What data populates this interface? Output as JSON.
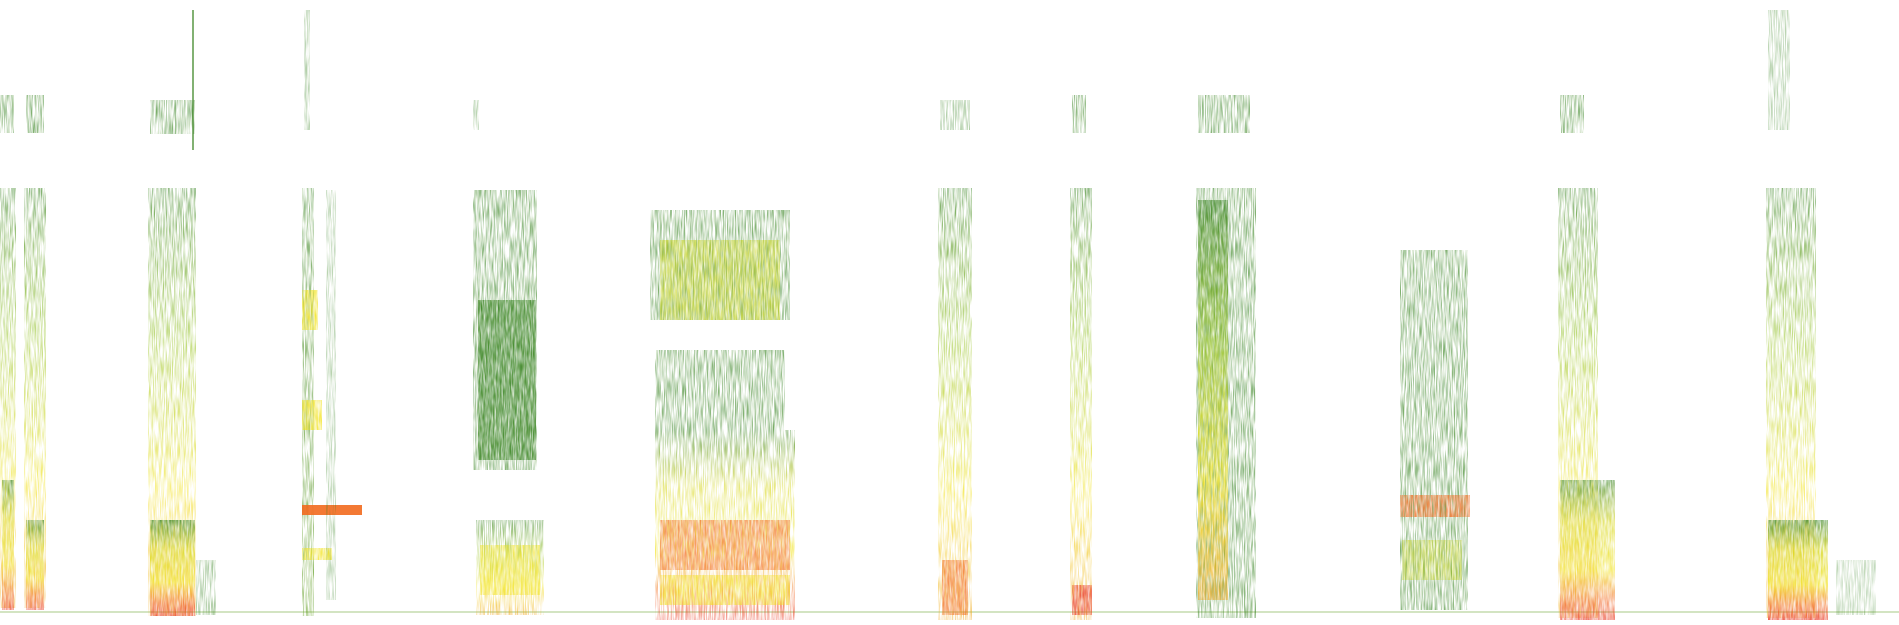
{
  "image": {
    "description_type": "spectrogram",
    "background_color": "#ffffff",
    "palette": {
      "low": "#2e7d16",
      "mid": "#b9cf1a",
      "high": "#f2e21a",
      "peak": "#f26a1e",
      "max": "#e8301c"
    },
    "segments": [
      {
        "name": "segment-1",
        "intensity": "high"
      },
      {
        "name": "segment-2",
        "intensity": "high"
      },
      {
        "name": "segment-3",
        "intensity": "high"
      },
      {
        "name": "segment-4",
        "intensity": "low"
      },
      {
        "name": "segment-5",
        "intensity": "medium"
      },
      {
        "name": "segment-6",
        "intensity": "high"
      },
      {
        "name": "segment-7",
        "intensity": "medium"
      },
      {
        "name": "segment-8",
        "intensity": "medium"
      },
      {
        "name": "segment-9",
        "intensity": "high"
      },
      {
        "name": "segment-10",
        "intensity": "medium"
      },
      {
        "name": "segment-11",
        "intensity": "high"
      },
      {
        "name": "segment-12",
        "intensity": "high"
      }
    ]
  }
}
